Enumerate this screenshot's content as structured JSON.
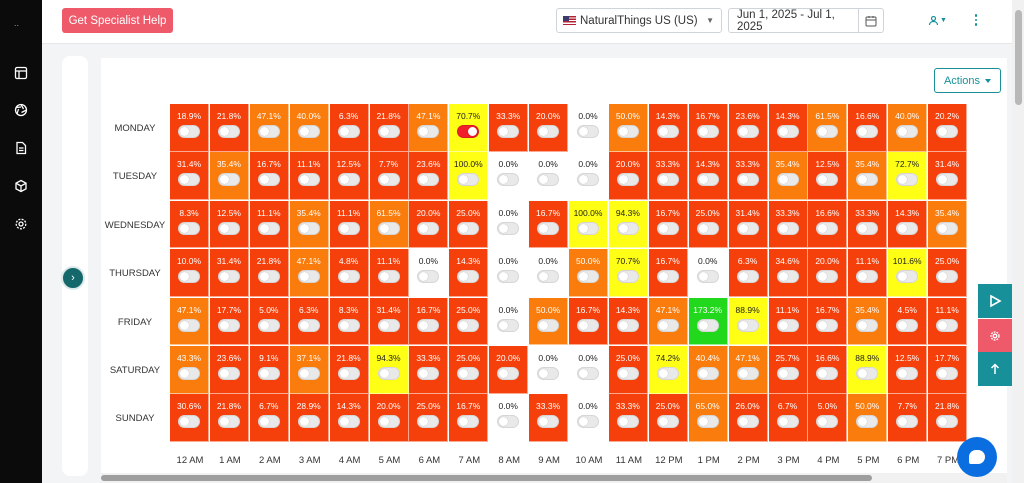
{
  "sidebar": {
    "top_text": "..",
    "icons": [
      "layout-icon",
      "aperture-icon",
      "document-icon",
      "cube-icon",
      "gear-icon"
    ]
  },
  "header": {
    "help_button": "Get Specialist Help",
    "store": "NaturalThings US (US)",
    "date_range": "Jun 1, 2025 - Jul 1, 2025"
  },
  "actions_label": "Actions",
  "days": [
    "MONDAY",
    "TUESDAY",
    "WEDNESDAY",
    "THURSDAY",
    "FRIDAY",
    "SATURDAY",
    "SUNDAY"
  ],
  "hours": [
    "12 AM",
    "1 AM",
    "2 AM",
    "3 AM",
    "4 AM",
    "5 AM",
    "6 AM",
    "7 AM",
    "8 AM",
    "9 AM",
    "10 AM",
    "11 AM",
    "12 PM",
    "1 PM",
    "2 PM",
    "3 PM",
    "4 PM",
    "5 PM",
    "6 PM",
    "7 PM"
  ],
  "colors": {
    "red": "#f5400c",
    "orange": "#f97c0d",
    "yellow": "#ffff16",
    "white": "#ffffff",
    "green": "#22d81c",
    "teal": "#17909a",
    "pink": "#ef5a6b"
  },
  "heatmap": {
    "rows": [
      {
        "values": [
          "18.9%",
          "21.8%",
          "47.1%",
          "40.0%",
          "6.3%",
          "21.8%",
          "47.1%",
          "70.7%",
          "33.3%",
          "20.0%",
          "0.0%",
          "50.0%",
          "14.3%",
          "16.7%",
          "23.6%",
          "14.3%",
          "61.5%",
          "16.6%",
          "40.0%",
          "20.2%"
        ],
        "colors": [
          "red",
          "red",
          "orange",
          "orange",
          "red",
          "red",
          "orange",
          "yellow",
          "red",
          "red",
          "white",
          "orange",
          "red",
          "red",
          "red",
          "red",
          "orange",
          "red",
          "orange",
          "red"
        ],
        "toggles_on": [
          7
        ]
      },
      {
        "values": [
          "31.4%",
          "35.4%",
          "16.7%",
          "11.1%",
          "12.5%",
          "7.7%",
          "23.6%",
          "100.0%",
          "0.0%",
          "0.0%",
          "0.0%",
          "20.0%",
          "33.3%",
          "14.3%",
          "33.3%",
          "35.4%",
          "12.5%",
          "35.4%",
          "72.7%",
          "31.4%"
        ],
        "colors": [
          "red",
          "orange",
          "red",
          "red",
          "red",
          "red",
          "red",
          "yellow",
          "white",
          "white",
          "white",
          "red",
          "red",
          "red",
          "red",
          "orange",
          "red",
          "orange",
          "yellow",
          "red"
        ],
        "toggles_on": []
      },
      {
        "values": [
          "8.3%",
          "12.5%",
          "11.1%",
          "35.4%",
          "11.1%",
          "61.5%",
          "20.0%",
          "25.0%",
          "0.0%",
          "16.7%",
          "100.0%",
          "94.3%",
          "16.7%",
          "25.0%",
          "31.4%",
          "33.3%",
          "16.6%",
          "33.3%",
          "14.3%",
          "35.4%"
        ],
        "colors": [
          "red",
          "red",
          "red",
          "orange",
          "red",
          "orange",
          "red",
          "red",
          "white",
          "red",
          "yellow",
          "yellow",
          "red",
          "red",
          "red",
          "red",
          "red",
          "red",
          "red",
          "orange"
        ],
        "toggles_on": []
      },
      {
        "values": [
          "10.0%",
          "31.4%",
          "21.8%",
          "47.1%",
          "4.8%",
          "11.1%",
          "0.0%",
          "14.3%",
          "0.0%",
          "0.0%",
          "50.0%",
          "70.7%",
          "16.7%",
          "0.0%",
          "6.3%",
          "34.6%",
          "20.0%",
          "11.1%",
          "101.6%",
          "25.0%"
        ],
        "colors": [
          "red",
          "red",
          "red",
          "orange",
          "red",
          "red",
          "white",
          "red",
          "white",
          "white",
          "orange",
          "yellow",
          "red",
          "white",
          "red",
          "red",
          "red",
          "red",
          "yellow",
          "red"
        ],
        "toggles_on": []
      },
      {
        "values": [
          "47.1%",
          "17.7%",
          "5.0%",
          "6.3%",
          "8.3%",
          "31.4%",
          "16.7%",
          "25.0%",
          "0.0%",
          "50.0%",
          "16.7%",
          "14.3%",
          "47.1%",
          "173.2%",
          "88.9%",
          "11.1%",
          "16.7%",
          "35.4%",
          "4.5%",
          "11.1%"
        ],
        "colors": [
          "orange",
          "red",
          "red",
          "red",
          "red",
          "red",
          "red",
          "red",
          "white",
          "orange",
          "red",
          "red",
          "orange",
          "green",
          "yellow",
          "red",
          "red",
          "orange",
          "red",
          "red"
        ],
        "toggles_on": []
      },
      {
        "values": [
          "43.3%",
          "23.6%",
          "9.1%",
          "37.1%",
          "21.8%",
          "94.3%",
          "33.3%",
          "25.0%",
          "20.0%",
          "0.0%",
          "0.0%",
          "25.0%",
          "74.2%",
          "40.4%",
          "47.1%",
          "25.7%",
          "16.6%",
          "88.9%",
          "12.5%",
          "17.7%"
        ],
        "colors": [
          "orange",
          "red",
          "red",
          "orange",
          "red",
          "yellow",
          "red",
          "red",
          "red",
          "white",
          "white",
          "red",
          "yellow",
          "orange",
          "orange",
          "red",
          "red",
          "yellow",
          "red",
          "red"
        ],
        "toggles_on": []
      },
      {
        "values": [
          "30.6%",
          "21.8%",
          "6.7%",
          "28.9%",
          "14.3%",
          "20.0%",
          "25.0%",
          "16.7%",
          "0.0%",
          "33.3%",
          "0.0%",
          "33.3%",
          "25.0%",
          "65.0%",
          "26.0%",
          "6.7%",
          "5.0%",
          "50.0%",
          "7.7%",
          "21.8%"
        ],
        "colors": [
          "red",
          "red",
          "red",
          "red",
          "red",
          "red",
          "red",
          "red",
          "white",
          "red",
          "white",
          "red",
          "red",
          "orange",
          "red",
          "red",
          "red",
          "orange",
          "red",
          "red"
        ],
        "toggles_on": []
      }
    ]
  }
}
